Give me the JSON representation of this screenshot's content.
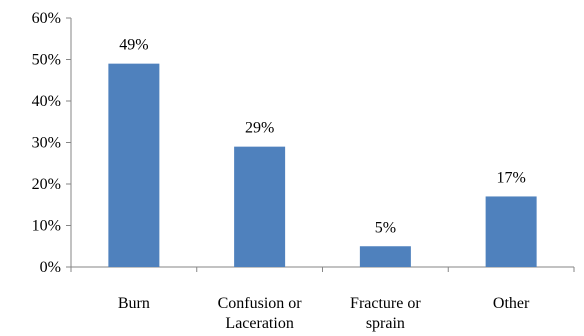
{
  "chart_data": {
    "type": "bar",
    "categories": [
      [
        "Burn"
      ],
      [
        "Confusion or",
        "Laceration"
      ],
      [
        "Fracture or",
        "sprain"
      ],
      [
        "Other"
      ]
    ],
    "values": [
      49,
      29,
      5,
      17
    ],
    "data_labels": [
      "49%",
      "29%",
      "5%",
      "17%"
    ],
    "yticks": [
      "0%",
      "10%",
      "20%",
      "30%",
      "40%",
      "50%",
      "60%"
    ],
    "ylim": [
      0,
      60
    ],
    "title": "",
    "xlabel": "",
    "ylabel": "",
    "grid": false,
    "colors": {
      "bar": "#4f81bd",
      "axis": "#868686"
    }
  }
}
